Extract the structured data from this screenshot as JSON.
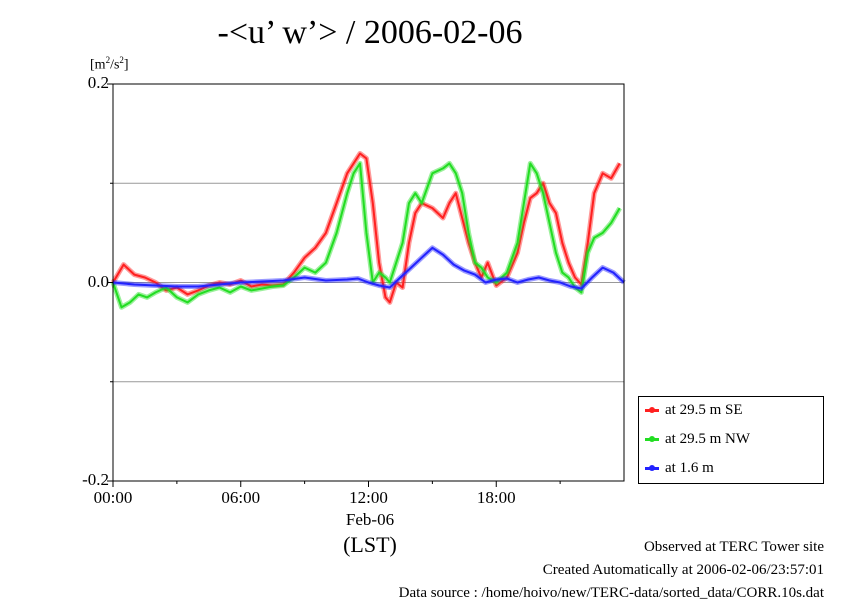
{
  "title": "-<u’ w’> / 2006-02-06",
  "ylabel_main": "[m",
  "ylabel_exp1": "2",
  "ylabel_mid": "/s",
  "ylabel_exp2": "2",
  "ylabel_end": "]",
  "date_label": "Feb-06",
  "time_zone_label": "(LST)",
  "footer": {
    "line1": "Observed at TERC Tower site",
    "line2": "Created Automatically at 2006-02-06/23:57:01",
    "line3": "Data source : /home/hoivo/new/TERC-data/sorted_data/CORR.10s.dat"
  },
  "colors": {
    "se": "#ff2020",
    "nw": "#22dd22",
    "low": "#2222ff"
  },
  "chart_data": {
    "type": "line",
    "xlim": [
      0,
      24
    ],
    "ylim": [
      -0.2,
      0.2
    ],
    "x_ticks": [
      0,
      6,
      12,
      18
    ],
    "x_tick_labels": [
      "00:00",
      "06:00",
      "12:00",
      "18:00"
    ],
    "y_ticks": [
      -0.2,
      0.0,
      0.2
    ],
    "y_tick_labels": [
      "-0.2",
      "0.0",
      "0.2"
    ],
    "gridlines_y": [
      -0.1,
      0.0,
      0.1
    ],
    "legend_position": "bottom-right",
    "series": [
      {
        "name": "at 29.5 m SE",
        "color": "#ff2020",
        "x": [
          0,
          0.5,
          1,
          1.5,
          2,
          2.5,
          3,
          3.5,
          4,
          4.5,
          5,
          5.5,
          6,
          6.5,
          7,
          7.5,
          8,
          8.5,
          9,
          9.5,
          10,
          10.5,
          11,
          11.3,
          11.6,
          11.9,
          12.2,
          12.5,
          12.8,
          13,
          13.3,
          13.6,
          13.9,
          14.2,
          14.5,
          15,
          15.5,
          15.8,
          16.1,
          16.4,
          16.7,
          17,
          17.3,
          17.6,
          18,
          18.5,
          19,
          19.3,
          19.6,
          19.9,
          20.2,
          20.5,
          20.8,
          21.1,
          21.4,
          21.7,
          22,
          22.3,
          22.6,
          23,
          23.4,
          23.8
        ],
        "y": [
          0.0,
          0.018,
          0.008,
          0.005,
          0.0,
          -0.008,
          -0.005,
          -0.012,
          -0.008,
          -0.003,
          0.0,
          -0.002,
          0.002,
          -0.004,
          -0.002,
          -0.003,
          -0.002,
          0.01,
          0.025,
          0.035,
          0.05,
          0.08,
          0.11,
          0.12,
          0.13,
          0.125,
          0.08,
          0.02,
          -0.015,
          -0.02,
          0.0,
          -0.005,
          0.04,
          0.07,
          0.08,
          0.075,
          0.065,
          0.08,
          0.09,
          0.065,
          0.04,
          0.02,
          0.005,
          0.02,
          -0.003,
          0.005,
          0.03,
          0.06,
          0.085,
          0.09,
          0.1,
          0.08,
          0.07,
          0.04,
          0.02,
          0.005,
          -0.002,
          0.04,
          0.09,
          0.11,
          0.105,
          0.12
        ]
      },
      {
        "name": "at 29.5 m NW",
        "color": "#22dd22",
        "x": [
          0,
          0.4,
          0.8,
          1.2,
          1.6,
          2,
          2.5,
          3,
          3.5,
          4,
          4.5,
          5,
          5.5,
          6,
          6.5,
          7,
          7.5,
          8,
          8.5,
          9,
          9.5,
          10,
          10.5,
          11,
          11.3,
          11.6,
          11.9,
          12.2,
          12.5,
          12.8,
          13,
          13.3,
          13.6,
          13.9,
          14.2,
          14.5,
          15,
          15.5,
          15.8,
          16.1,
          16.4,
          16.7,
          17,
          17.3,
          17.6,
          18,
          18.5,
          19,
          19.3,
          19.6,
          19.9,
          20.2,
          20.5,
          20.8,
          21.1,
          21.4,
          21.7,
          22,
          22.3,
          22.6,
          23,
          23.4,
          23.8
        ],
        "y": [
          0.0,
          -0.025,
          -0.02,
          -0.012,
          -0.015,
          -0.01,
          -0.005,
          -0.015,
          -0.02,
          -0.012,
          -0.008,
          -0.005,
          -0.01,
          -0.004,
          -0.008,
          -0.006,
          -0.004,
          -0.003,
          0.005,
          0.015,
          0.01,
          0.02,
          0.05,
          0.09,
          0.11,
          0.12,
          0.05,
          0.0,
          0.01,
          0.005,
          0.0,
          0.02,
          0.04,
          0.08,
          0.09,
          0.08,
          0.11,
          0.115,
          0.12,
          0.11,
          0.09,
          0.05,
          0.02,
          0.015,
          0.005,
          0.0,
          0.01,
          0.04,
          0.08,
          0.12,
          0.11,
          0.09,
          0.06,
          0.03,
          0.01,
          0.005,
          -0.005,
          -0.01,
          0.03,
          0.045,
          0.05,
          0.06,
          0.075
        ]
      },
      {
        "name": "at 1.6 m",
        "color": "#2222ff",
        "x": [
          0,
          1,
          2,
          3,
          4,
          5,
          6,
          7,
          8,
          9,
          10,
          11,
          11.5,
          12,
          12.5,
          13,
          13.5,
          14,
          14.5,
          15,
          15.5,
          16,
          16.5,
          17,
          17.5,
          18,
          18.5,
          19,
          19.5,
          20,
          20.5,
          21,
          21.5,
          22,
          22.5,
          23,
          23.5,
          24
        ],
        "y": [
          0.0,
          -0.002,
          -0.003,
          -0.004,
          -0.004,
          -0.002,
          0.0,
          0.001,
          0.002,
          0.005,
          0.002,
          0.003,
          0.004,
          0.0,
          -0.003,
          -0.005,
          0.005,
          0.015,
          0.025,
          0.035,
          0.028,
          0.018,
          0.012,
          0.008,
          0.0,
          0.003,
          0.004,
          0.0,
          0.003,
          0.005,
          0.002,
          0.0,
          -0.004,
          -0.006,
          0.005,
          0.015,
          0.01,
          0.0
        ]
      }
    ]
  }
}
